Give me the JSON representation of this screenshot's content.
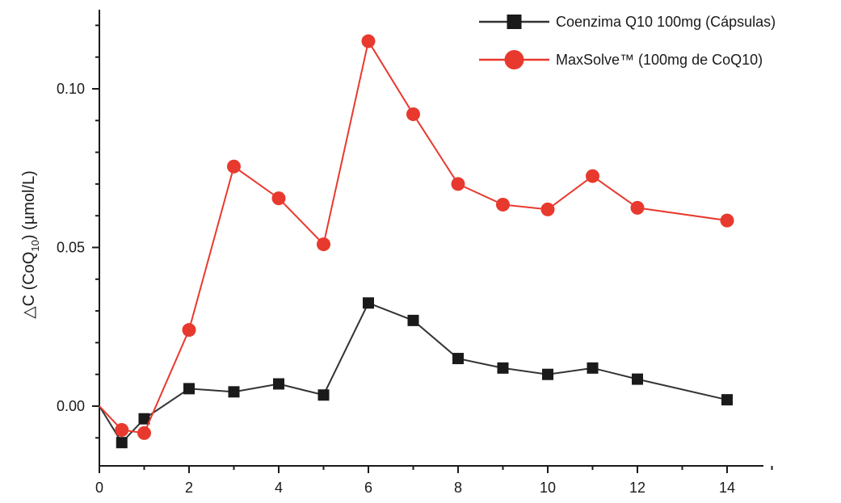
{
  "chart_data": {
    "type": "line",
    "title": "",
    "xlabel": "",
    "ylabel": {
      "prefix": "△C (CoQ",
      "subscript": "10",
      "suffix": ") (µmol/L)"
    },
    "xlim": [
      0,
      15
    ],
    "ylim": [
      -0.019,
      0.125
    ],
    "xticks": [
      0,
      2,
      4,
      6,
      8,
      10,
      12,
      14
    ],
    "xtick_labels": [
      "0",
      "2",
      "4",
      "6",
      "8",
      "10",
      "12",
      "14"
    ],
    "yticks": [
      0.0,
      0.05,
      0.1
    ],
    "ytick_labels": [
      "0.00",
      "0.05",
      "0.10"
    ],
    "grid": false,
    "legend_position": "top-right",
    "series": [
      {
        "name": "Coenzima Q10 100mg (Cápsulas)",
        "color": "#1a1a1a",
        "line_color": "#333333",
        "marker": "square",
        "x": [
          0,
          0.5,
          1,
          2,
          3,
          4,
          5,
          6,
          7,
          8,
          9,
          10,
          11,
          12,
          14
        ],
        "y": [
          0.0,
          -0.0115,
          -0.004,
          0.0055,
          0.0045,
          0.007,
          0.0035,
          0.0325,
          0.027,
          0.015,
          0.012,
          0.01,
          0.012,
          0.0085,
          0.002
        ]
      },
      {
        "name": "MaxSolve™ (100mg de CoQ10)",
        "color": "#e8392e",
        "line_color": "#e8392e",
        "marker": "circle",
        "x": [
          0,
          0.5,
          1,
          2,
          3,
          4,
          5,
          6,
          7,
          8,
          9,
          10,
          11,
          12,
          14
        ],
        "y": [
          0.0,
          -0.0075,
          -0.0085,
          0.024,
          0.0755,
          0.0655,
          0.051,
          0.115,
          0.092,
          0.07,
          0.0635,
          0.062,
          0.0725,
          0.0625,
          0.0585
        ]
      }
    ]
  }
}
